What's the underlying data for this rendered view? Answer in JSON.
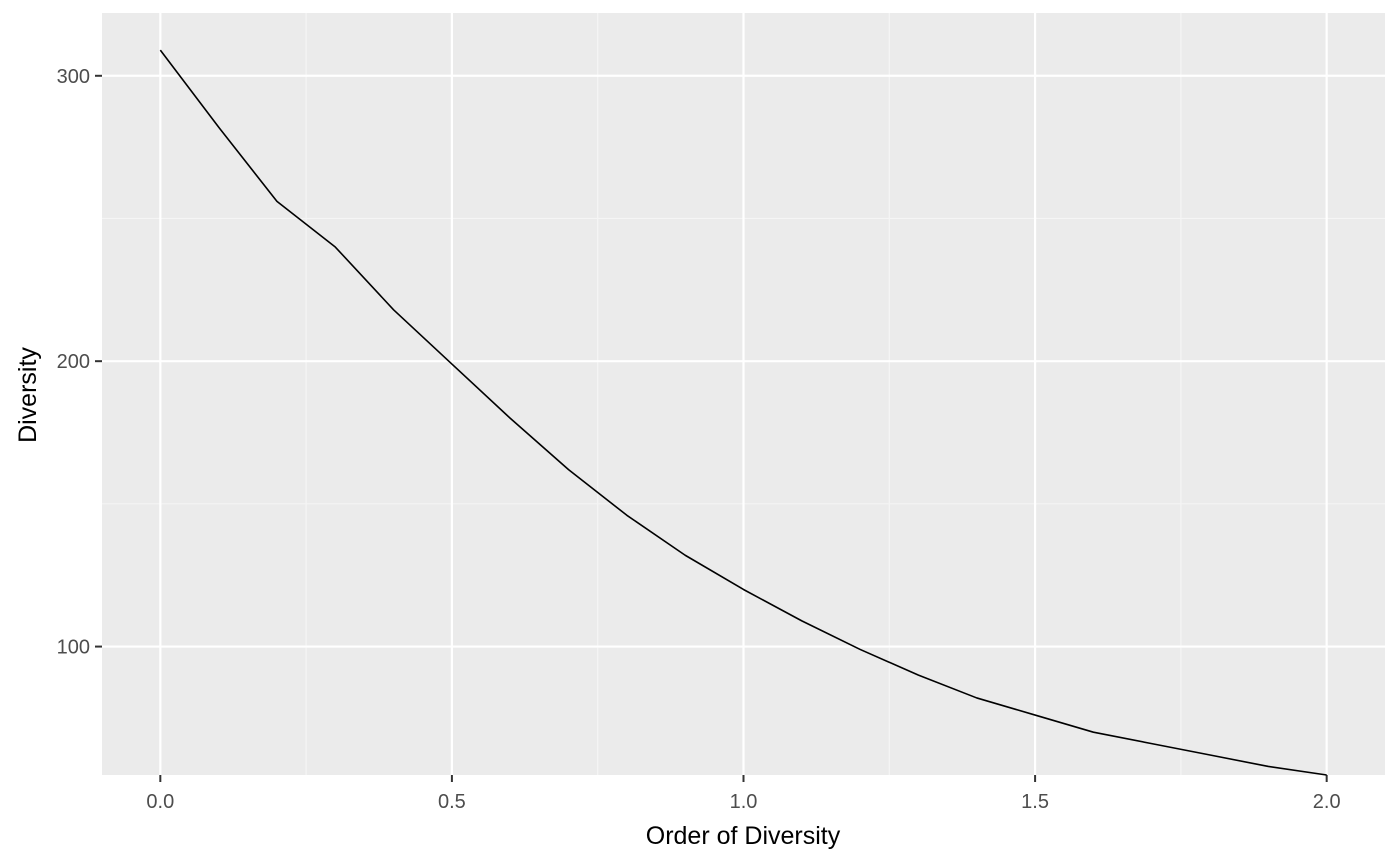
{
  "chart_data": {
    "type": "line",
    "title": "",
    "xlabel": "Order of Diversity",
    "ylabel": "Diversity",
    "xlim": [
      -0.1,
      2.1
    ],
    "ylim": [
      55,
      322
    ],
    "x_ticks": [
      0.0,
      0.5,
      1.0,
      1.5,
      2.0
    ],
    "x_tick_labels": [
      "0.0",
      "0.5",
      "1.0",
      "1.5",
      "2.0"
    ],
    "y_ticks": [
      100,
      200,
      300
    ],
    "y_tick_labels": [
      "100",
      "200",
      "300"
    ],
    "grid": true,
    "legend": "none",
    "series": [
      {
        "color": "#000000",
        "x": [
          0.0,
          0.1,
          0.2,
          0.3,
          0.4,
          0.5,
          0.6,
          0.7,
          0.8,
          0.9,
          1.0,
          1.1,
          1.2,
          1.3,
          1.4,
          1.5,
          1.6,
          1.7,
          1.8,
          1.9,
          2.0
        ],
        "y": [
          309,
          282,
          256,
          240,
          218,
          199,
          180,
          162,
          146,
          132,
          120,
          109,
          99,
          90,
          82,
          76,
          70,
          66,
          62,
          58,
          55
        ]
      }
    ]
  },
  "colors": {
    "panel_background": "#ebebeb",
    "grid_major": "#ffffff",
    "grid_minor": "#f5f5f5",
    "line": "#000000",
    "tick_label": "#4d4d4d",
    "axis_title": "#000000"
  }
}
